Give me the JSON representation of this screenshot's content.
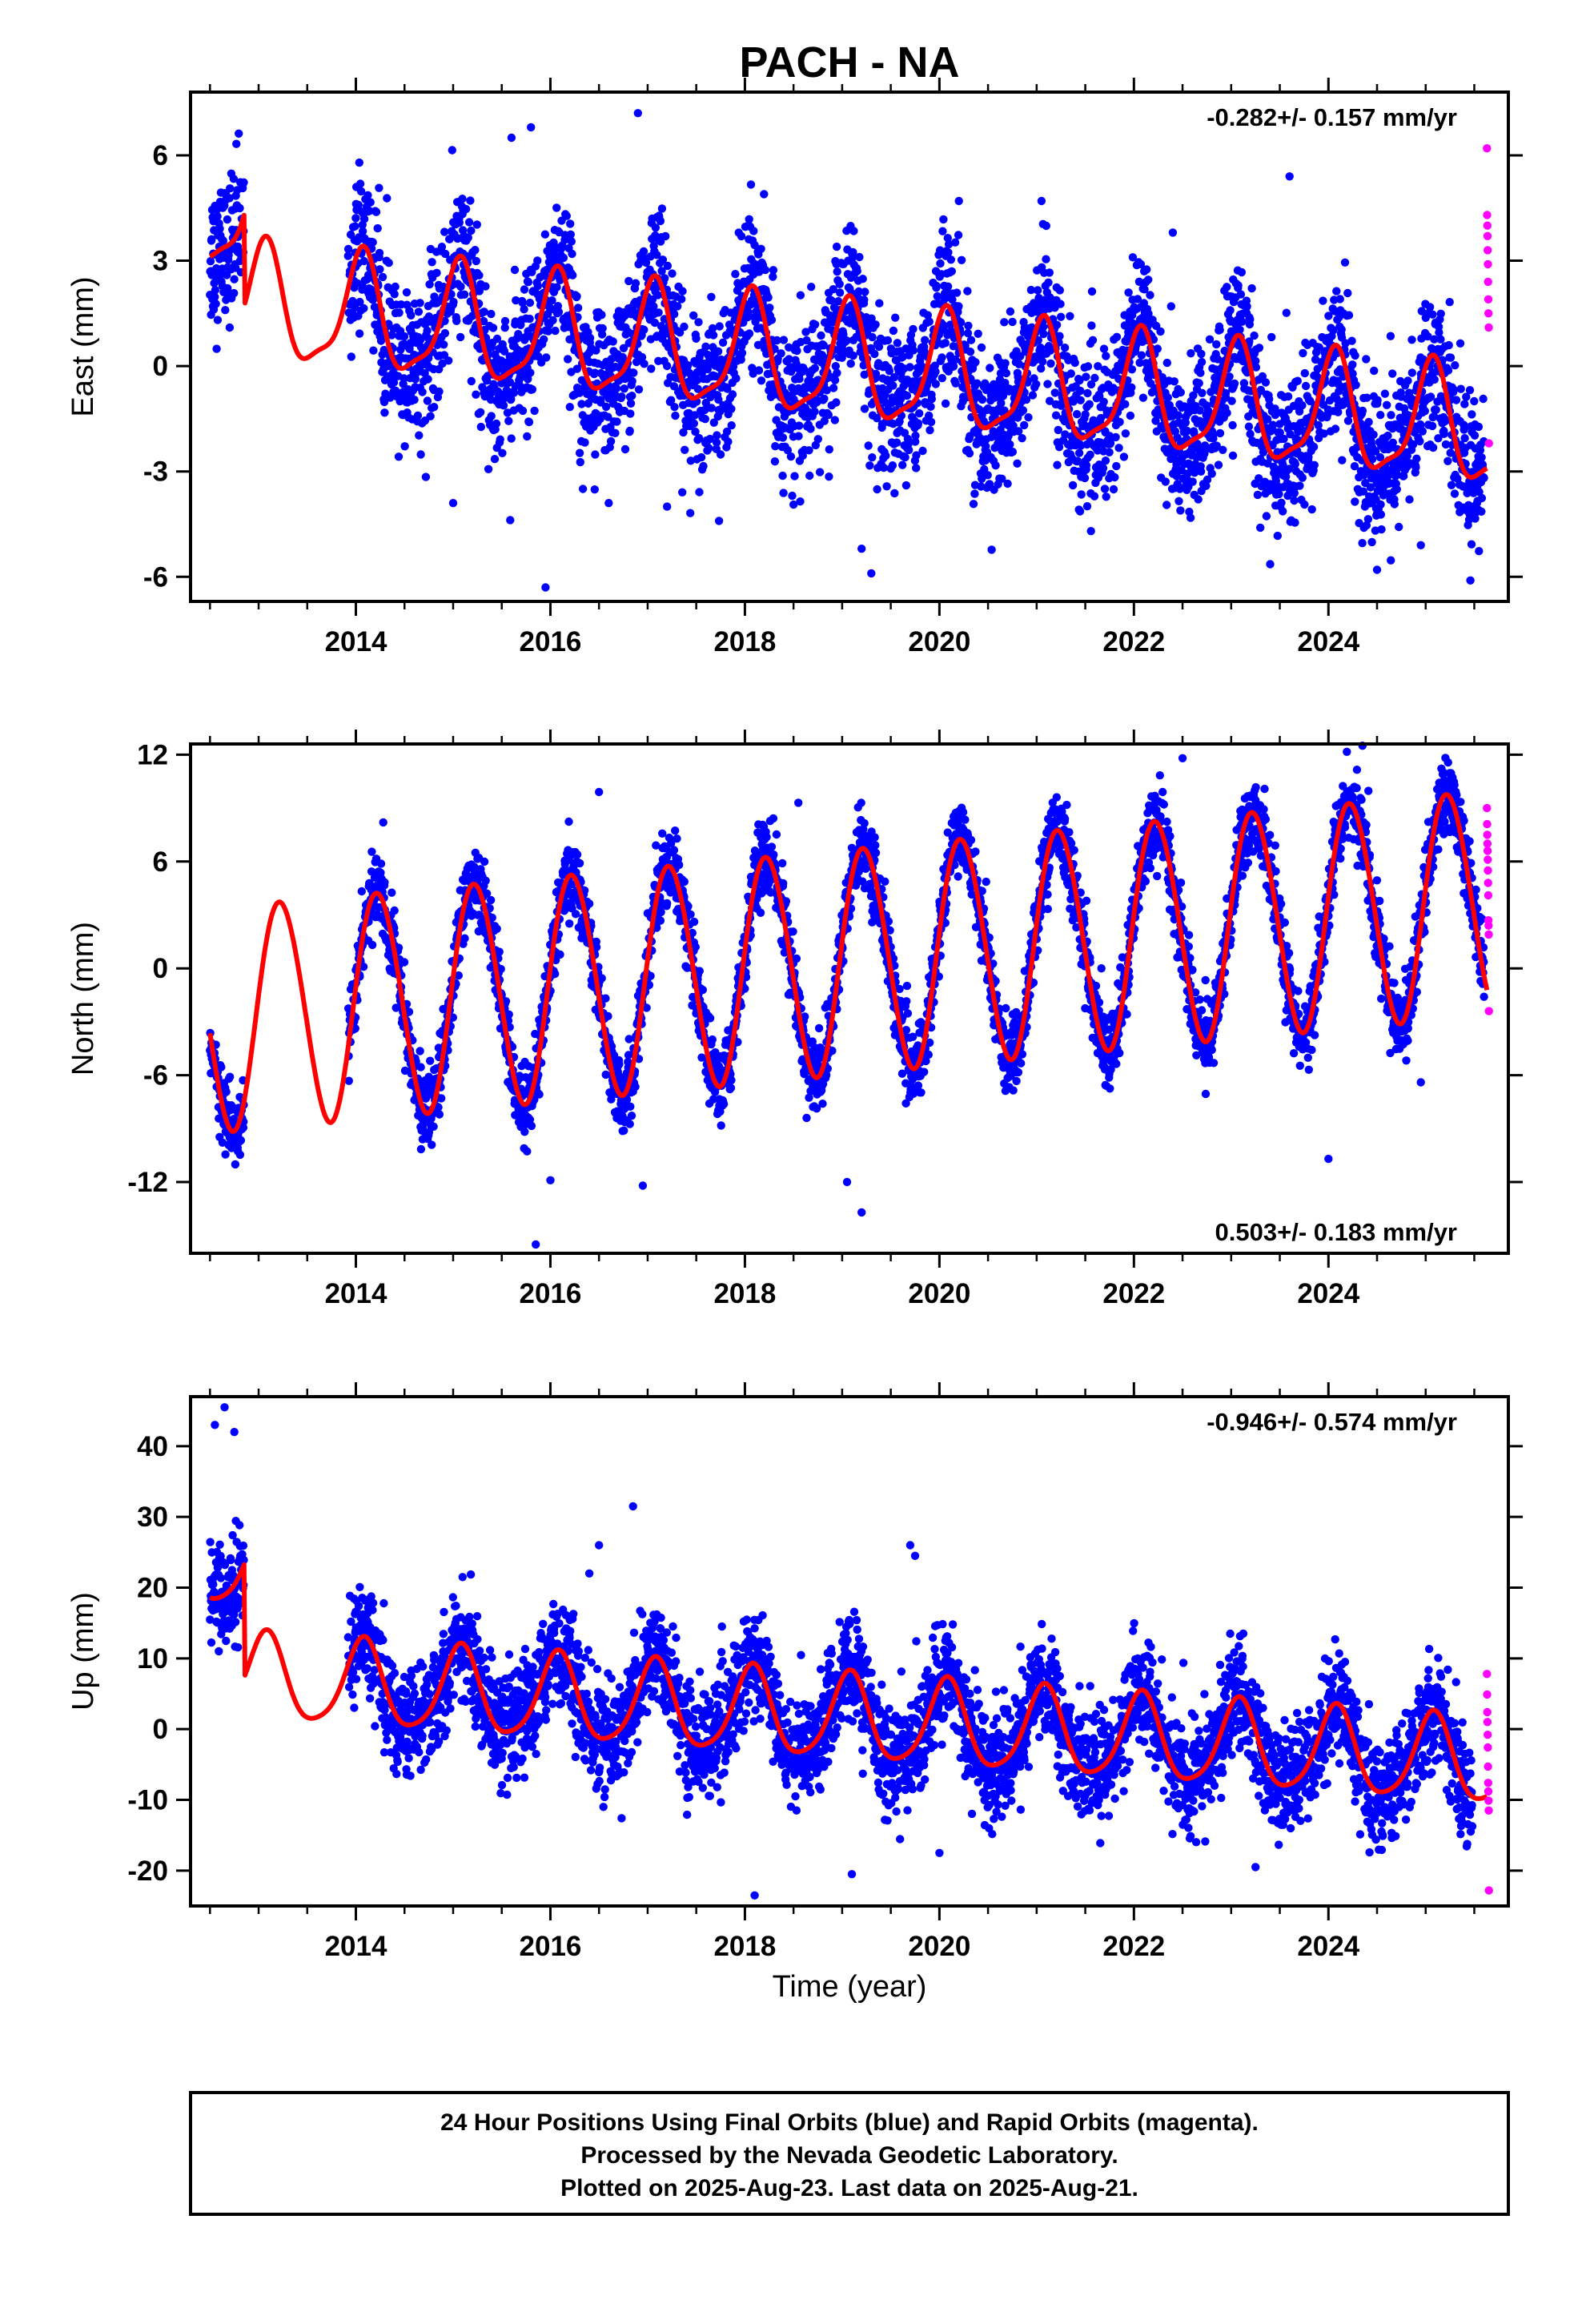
{
  "figure": {
    "title": "PACH - NA",
    "xlabel": "Time (year)",
    "footer": [
      "24 Hour Positions Using Final Orbits (blue) and Rapid Orbits (magenta).",
      "Processed by the Nevada Geodetic Laboratory.",
      "Plotted on 2025-Aug-23. Last data on 2025-Aug-21."
    ]
  },
  "colors": {
    "final": "#0000ff",
    "rapid": "#ff00ff",
    "model": "#ff0000",
    "frame": "#000000"
  },
  "chart_data": [
    {
      "type": "scatter",
      "component": "east",
      "ylabel": "East (mm)",
      "rate": "-0.282+/- 0.157 mm/yr",
      "rate_position": "top-right",
      "xlim": [
        2012.3,
        2025.85
      ],
      "ylim": [
        -6.7,
        7.8
      ],
      "xticks": [
        2014,
        2016,
        2018,
        2020,
        2022,
        2024
      ],
      "xtick_labels": [
        "2014",
        "2016",
        "2018",
        "2020",
        "2022",
        "2024"
      ],
      "yticks": [
        -6,
        -3,
        0,
        3,
        6
      ],
      "ytick_labels": [
        "-6",
        "-3",
        "0",
        "3",
        "6"
      ],
      "grid": false,
      "segments": [
        [
          2012.5,
          2012.85
        ],
        [
          2013.92,
          2025.6
        ]
      ],
      "model": {
        "y0": 0.0,
        "t0": 2019.0,
        "rate": -0.282,
        "annual_amp": 1.6,
        "annual_phase": 1.2,
        "semi_amp": 0.45,
        "semi_phase": 0.4,
        "start": 2012.5,
        "end": 2025.63,
        "offsets": [
          [
            2012.5,
            2012.85,
            2.6
          ]
        ]
      },
      "scatter_sd": 1.05,
      "outliers": [
        [
          2015.95,
          -6.3
        ],
        [
          2019.3,
          -5.9
        ],
        [
          2019.2,
          -5.2
        ],
        [
          2024.5,
          -5.8
        ],
        [
          2024.95,
          -5.1
        ],
        [
          2015.0,
          -3.9
        ],
        [
          2016.6,
          -3.9
        ],
        [
          2017.2,
          -4.0
        ],
        [
          2023.3,
          -4.6
        ],
        [
          2016.9,
          7.2
        ],
        [
          2015.8,
          6.8
        ],
        [
          2015.6,
          6.5
        ],
        [
          2020.2,
          4.7
        ],
        [
          2022.4,
          3.8
        ],
        [
          2023.6,
          5.4
        ],
        [
          2021.05,
          4.7
        ]
      ],
      "rapid": {
        "start": 2025.63,
        "end": 2025.65,
        "values": [
          6.2,
          4.3,
          4.0,
          3.7,
          3.3,
          2.9,
          2.4,
          1.9,
          1.5,
          1.1,
          -2.2
        ]
      }
    },
    {
      "type": "scatter",
      "component": "north",
      "ylabel": "North (mm)",
      "rate": "0.503+/- 0.183 mm/yr",
      "rate_position": "bottom-right",
      "xlim": [
        2012.3,
        2025.85
      ],
      "ylim": [
        -16,
        12.6
      ],
      "xticks": [
        2014,
        2016,
        2018,
        2020,
        2022,
        2024
      ],
      "xtick_labels": [
        "2014",
        "2016",
        "2018",
        "2020",
        "2022",
        "2024"
      ],
      "yticks": [
        -12,
        -6,
        0,
        6,
        12
      ],
      "ytick_labels": [
        "-12",
        "-6",
        "0",
        "6",
        "12"
      ],
      "grid": false,
      "segments": [
        [
          2012.5,
          2012.85
        ],
        [
          2013.92,
          2025.6
        ]
      ],
      "model": {
        "y0": 0.4,
        "t0": 2019.0,
        "rate": 0.503,
        "annual_amp": 6.3,
        "annual_phase": 0.15,
        "semi_amp": 0.3,
        "semi_phase": 0.6,
        "start": 2012.5,
        "end": 2025.63,
        "offsets": []
      },
      "scatter_sd": 1.05,
      "outliers": [
        [
          2015.85,
          -15.5
        ],
        [
          2019.2,
          -13.7
        ],
        [
          2019.05,
          -12.0
        ],
        [
          2016.95,
          -12.2
        ],
        [
          2016.0,
          -11.9
        ],
        [
          2024.0,
          -10.7
        ],
        [
          2024.95,
          -6.4
        ],
        [
          2024.35,
          12.5
        ],
        [
          2022.5,
          11.8
        ],
        [
          2016.5,
          9.9
        ],
        [
          2018.55,
          9.3
        ]
      ],
      "rapid": {
        "start": 2025.63,
        "end": 2025.65,
        "values": [
          9.0,
          8.1,
          7.5,
          7.0,
          6.6,
          6.1,
          5.5,
          4.8,
          4.1,
          2.7,
          2.4,
          1.9,
          -2.4
        ]
      }
    },
    {
      "type": "scatter",
      "component": "up",
      "ylabel": "Up (mm)",
      "rate": "-0.946+/- 0.574 mm/yr",
      "rate_position": "top-right",
      "xlim": [
        2012.3,
        2025.85
      ],
      "ylim": [
        -25,
        47
      ],
      "xticks": [
        2014,
        2016,
        2018,
        2020,
        2022,
        2024
      ],
      "xtick_labels": [
        "2014",
        "2016",
        "2018",
        "2020",
        "2022",
        "2024"
      ],
      "yticks": [
        -20,
        -10,
        0,
        10,
        20,
        30,
        40
      ],
      "ytick_labels": [
        "-20",
        "-10",
        "0",
        "10",
        "20",
        "30",
        "40"
      ],
      "grid": false,
      "segments": [
        [
          2012.5,
          2012.85
        ],
        [
          2013.92,
          2025.48
        ]
      ],
      "model": {
        "y0": 1.5,
        "t0": 2019.0,
        "rate": -0.946,
        "annual_amp": 6.0,
        "annual_phase": 1.1,
        "semi_amp": 1.0,
        "semi_phase": 0.3,
        "start": 2012.5,
        "end": 2025.63,
        "offsets": [
          [
            2012.5,
            2012.85,
            16.0
          ]
        ]
      },
      "scatter_sd": 3.8,
      "outliers": [
        [
          2012.65,
          45.5
        ],
        [
          2012.55,
          43.0
        ],
        [
          2012.75,
          42.0
        ],
        [
          2016.85,
          31.5
        ],
        [
          2019.7,
          26.0
        ],
        [
          2019.75,
          24.5
        ],
        [
          2018.1,
          -23.5
        ],
        [
          2019.1,
          -20.5
        ],
        [
          2020.0,
          -17.5
        ],
        [
          2023.25,
          -19.5
        ],
        [
          2016.5,
          26.0
        ],
        [
          2016.4,
          22.0
        ]
      ],
      "rapid": {
        "start": 2025.63,
        "end": 2025.65,
        "values": [
          7.8,
          4.9,
          2.4,
          1.0,
          -0.8,
          -2.6,
          -5.3,
          -7.6,
          -8.8,
          -10.1,
          -11.5,
          -22.8
        ]
      }
    }
  ]
}
